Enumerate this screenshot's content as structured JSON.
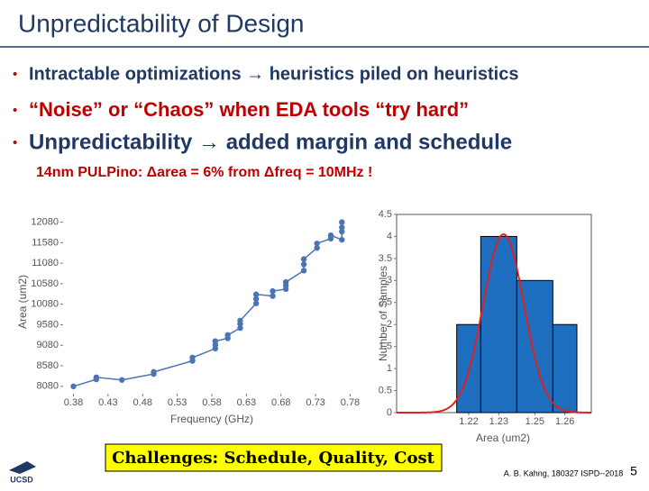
{
  "title": "Unpredictability of Design",
  "bullets": [
    {
      "marker": "•",
      "text": "Intractable optimizations → heuristics piled on heuristics"
    },
    {
      "marker": "•",
      "text": "“Noise” or “Chaos” when EDA tools “try hard”"
    },
    {
      "marker": "•",
      "text": "Unpredictability → added margin and schedule"
    }
  ],
  "note": "14nm PULPino: Δarea = 6% from Δfreq = 10MHz !",
  "chart_data": [
    {
      "type": "line",
      "x_label": "Frequency (GHz)",
      "y_label": "Area (um2)",
      "color": "#4a74b4",
      "xlim": [
        0.365,
        0.795
      ],
      "xticks": [
        0.38,
        0.43,
        0.48,
        0.53,
        0.58,
        0.63,
        0.68,
        0.73,
        0.78
      ],
      "ylim": [
        7900,
        12400
      ],
      "yticks": [
        8080,
        8580,
        9080,
        9580,
        10080,
        10580,
        11080,
        11580,
        12080
      ],
      "x": [
        0.38,
        0.413,
        0.413,
        0.45,
        0.496,
        0.496,
        0.552,
        0.552,
        0.585,
        0.585,
        0.585,
        0.603,
        0.603,
        0.621,
        0.621,
        0.621,
        0.644,
        0.644,
        0.644,
        0.668,
        0.668,
        0.687,
        0.687,
        0.687,
        0.713,
        0.713,
        0.713,
        0.732,
        0.732,
        0.752,
        0.752,
        0.768,
        0.768,
        0.768,
        0.768
      ],
      "series": [
        {
          "values": [
            8080,
            8250,
            8300,
            8235,
            8380,
            8430,
            8700,
            8780,
            9000,
            9090,
            9180,
            9250,
            9330,
            9500,
            9600,
            9680,
            10100,
            10210,
            10320,
            10280,
            10400,
            10450,
            10540,
            10620,
            10900,
            11050,
            11180,
            11450,
            11560,
            11680,
            11760,
            11650,
            11850,
            11950,
            12080
          ]
        }
      ]
    },
    {
      "type": "histogram",
      "x_label": "Area (um2)",
      "y_label": "Number of Samples",
      "color": "#1f6fc0",
      "curve_color": "#e02020",
      "bins": [
        1.215,
        1.225,
        1.24,
        1.255,
        1.265
      ],
      "values": [
        2,
        4,
        3,
        2
      ],
      "curve": {
        "mean": 1.2345,
        "sd": 0.0085,
        "peak": 4.05
      },
      "xlim": [
        1.19,
        1.271
      ],
      "xticks": [
        {
          "value": 1.22,
          "label": "1.22"
        },
        {
          "value": 1.2325,
          "label": "1.23"
        },
        {
          "value": 1.2475,
          "label": "1.25"
        },
        {
          "value": 1.26,
          "label": "1.26"
        }
      ],
      "ylim": [
        0,
        4.5
      ],
      "yticks": [
        0,
        0.5,
        1,
        1.5,
        2,
        2.5,
        3,
        3.5,
        4,
        4.5
      ]
    }
  ],
  "callout": "Challenges:  Schedule, Quality, Cost",
  "logo_text": "UCSD",
  "footer": "A. B. Kahng, 180327 ISPD--2018",
  "page_number": "5"
}
